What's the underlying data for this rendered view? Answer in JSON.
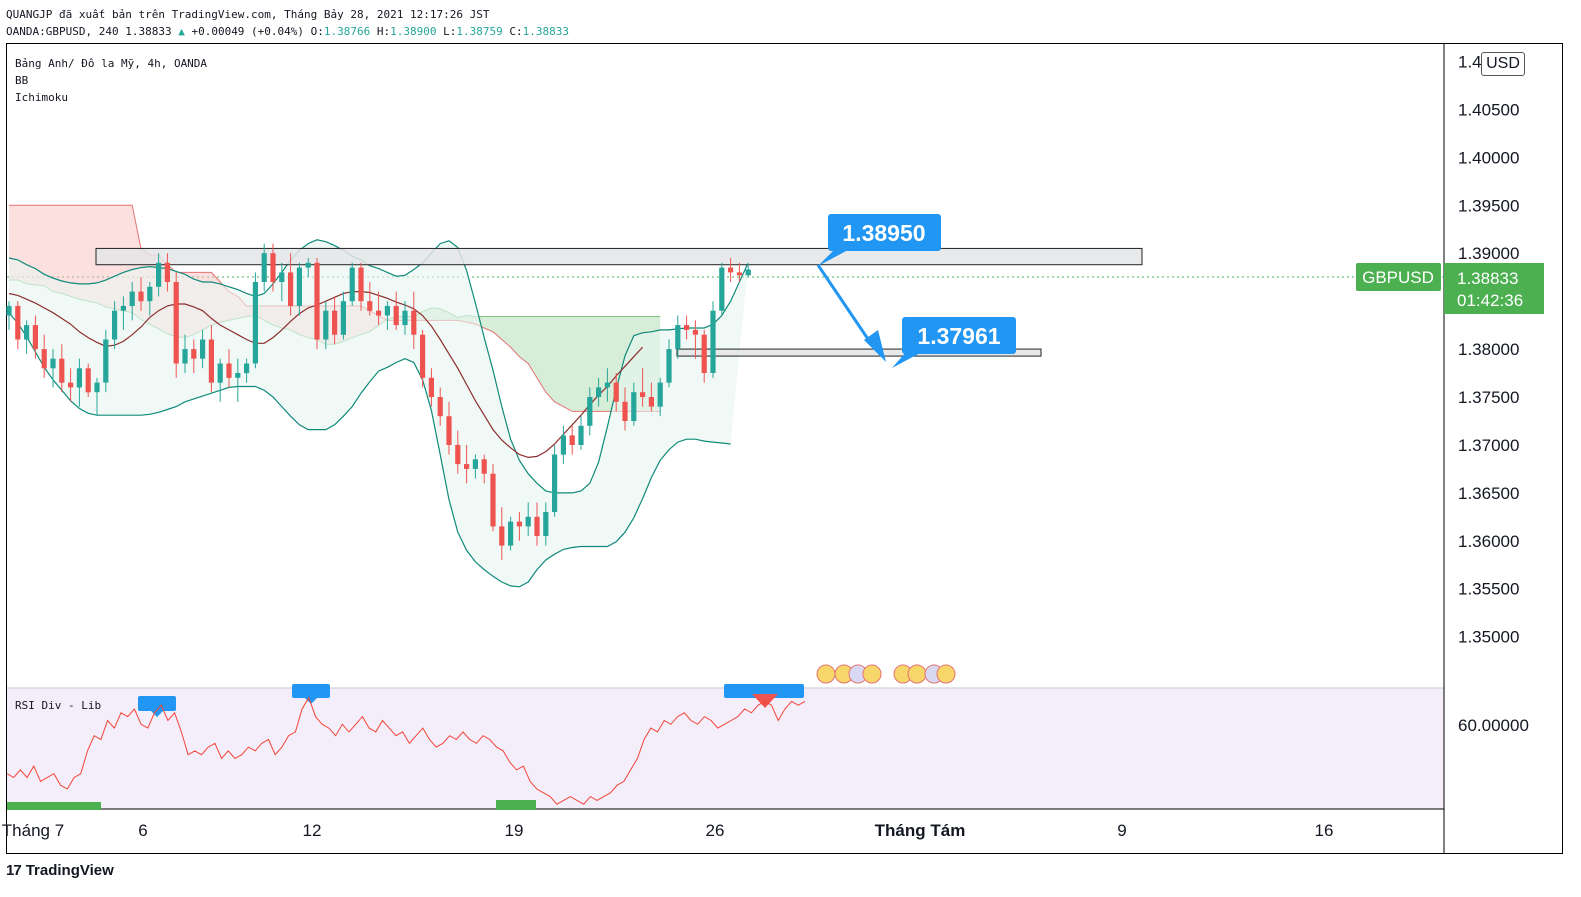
{
  "header": {
    "line1": "QUANGJP đã xuất bản trên TradingView.com, Tháng Bảy 28, 2021 12:17:26 JST",
    "symbol": "OANDA:GBPUSD, 240",
    "last": "1.38833",
    "change": "+0.00049 (+0.04%)",
    "o_label": "O:",
    "o": "1.38766",
    "h_label": "H:",
    "h": "1.38900",
    "l_label": "L:",
    "l": "1.38759",
    "c_label": "C:",
    "c": "1.38833"
  },
  "legend": {
    "title": "Bảng Anh/ Đô la Mỹ, 4h, OANDA",
    "indicator1": "BB",
    "indicator2": "Ichimoku"
  },
  "rsi_label": "RSI Div - Lib",
  "currency": "USD",
  "brand": "TradingView",
  "colors": {
    "up": "#26a69a",
    "down": "#ef5350",
    "bb_band": "#0f8a7a",
    "bb_basis": "#8b2e2e",
    "cloud_bull": "#a5d6a7",
    "cloud_bear": "#f8bbbb",
    "callout": "#2196f3",
    "price_tag": "#4caf50",
    "rsi_line": "#f44336",
    "rsi_bg": "#f3eef9"
  },
  "icons": {
    "callout_arrow": "arrow-down-right-icon",
    "event_flags": "flag-icon",
    "brand_logo": "tradingview-logo-icon"
  },
  "chart_data": [
    {
      "type": "candlestick",
      "title": "Bảng Anh/ Đô la Mỹ, 4h, OANDA",
      "symbol": "GBPUSD",
      "y_axis": {
        "ticks": [
          "1.41000",
          "1.40500",
          "1.40000",
          "1.39500",
          "1.39000",
          "1.38500",
          "1.38000",
          "1.37500",
          "1.37000",
          "1.36500",
          "1.36000",
          "1.35500",
          "1.35000"
        ],
        "range": [
          1.346,
          1.4112
        ]
      },
      "x_axis": {
        "ticks": [
          "Tháng 7",
          "6",
          "12",
          "19",
          "26",
          "Tháng Tám",
          "9",
          "16"
        ]
      },
      "last_price": {
        "label": "GBPUSD",
        "value": "1.38833",
        "countdown": "01:42:36"
      },
      "annotations": [
        {
          "label": "1.38950",
          "value": 1.3895
        },
        {
          "label": "1.37961",
          "value": 1.37961
        }
      ],
      "zones": [
        {
          "name": "resistance",
          "low": 1.3888,
          "high": 1.3905
        },
        {
          "name": "support",
          "low": 1.3793,
          "high": 1.38
        }
      ],
      "candles_ohlc": [
        [
          1.3835,
          1.385,
          1.382,
          1.3845
        ],
        [
          1.3845,
          1.385,
          1.38,
          1.381
        ],
        [
          1.381,
          1.383,
          1.3795,
          1.3825
        ],
        [
          1.3825,
          1.3835,
          1.379,
          1.38
        ],
        [
          1.38,
          1.3815,
          1.377,
          1.378
        ],
        [
          1.378,
          1.38,
          1.376,
          1.379
        ],
        [
          1.379,
          1.3805,
          1.3755,
          1.3765
        ],
        [
          1.3765,
          1.378,
          1.3745,
          1.376
        ],
        [
          1.376,
          1.379,
          1.374,
          1.378
        ],
        [
          1.378,
          1.3785,
          1.375,
          1.3755
        ],
        [
          1.3755,
          1.377,
          1.373,
          1.3765
        ],
        [
          1.3765,
          1.382,
          1.3755,
          1.381
        ],
        [
          1.381,
          1.385,
          1.38,
          1.384
        ],
        [
          1.384,
          1.3855,
          1.382,
          1.3845
        ],
        [
          1.3845,
          1.387,
          1.383,
          1.386
        ],
        [
          1.386,
          1.3875,
          1.384,
          1.385
        ],
        [
          1.385,
          1.387,
          1.3835,
          1.3865
        ],
        [
          1.3865,
          1.39,
          1.3855,
          1.389
        ],
        [
          1.389,
          1.39,
          1.386,
          1.387
        ],
        [
          1.387,
          1.388,
          1.377,
          1.3785
        ],
        [
          1.3785,
          1.3815,
          1.3775,
          1.38
        ],
        [
          1.38,
          1.381,
          1.3775,
          1.379
        ],
        [
          1.379,
          1.382,
          1.378,
          1.381
        ],
        [
          1.381,
          1.3825,
          1.3755,
          1.3765
        ],
        [
          1.3765,
          1.379,
          1.3745,
          1.3785
        ],
        [
          1.3785,
          1.38,
          1.376,
          1.377
        ],
        [
          1.377,
          1.379,
          1.3745,
          1.3775
        ],
        [
          1.3775,
          1.379,
          1.3765,
          1.3785
        ],
        [
          1.3785,
          1.388,
          1.378,
          1.387
        ],
        [
          1.387,
          1.391,
          1.386,
          1.39
        ],
        [
          1.39,
          1.391,
          1.386,
          1.387
        ],
        [
          1.387,
          1.389,
          1.385,
          1.388
        ],
        [
          1.388,
          1.39,
          1.3835,
          1.3845
        ],
        [
          1.3845,
          1.389,
          1.3835,
          1.3885
        ],
        [
          1.3885,
          1.3895,
          1.3875,
          1.389
        ],
        [
          1.389,
          1.3895,
          1.38,
          1.381
        ],
        [
          1.381,
          1.385,
          1.38,
          1.384
        ],
        [
          1.384,
          1.3855,
          1.3805,
          1.3815
        ],
        [
          1.3815,
          1.386,
          1.381,
          1.385
        ],
        [
          1.385,
          1.389,
          1.3845,
          1.3885
        ],
        [
          1.3885,
          1.389,
          1.384,
          1.385
        ],
        [
          1.385,
          1.387,
          1.3835,
          1.384
        ],
        [
          1.384,
          1.386,
          1.3825,
          1.3835
        ],
        [
          1.3835,
          1.385,
          1.382,
          1.3845
        ],
        [
          1.3845,
          1.386,
          1.382,
          1.3825
        ],
        [
          1.3825,
          1.385,
          1.3815,
          1.384
        ],
        [
          1.384,
          1.386,
          1.38,
          1.3815
        ],
        [
          1.3815,
          1.382,
          1.376,
          1.377
        ],
        [
          1.377,
          1.378,
          1.374,
          1.375
        ],
        [
          1.375,
          1.376,
          1.372,
          1.373
        ],
        [
          1.373,
          1.3745,
          1.369,
          1.37
        ],
        [
          1.37,
          1.3715,
          1.367,
          1.368
        ],
        [
          1.368,
          1.37,
          1.366,
          1.3675
        ],
        [
          1.3675,
          1.369,
          1.3665,
          1.3685
        ],
        [
          1.3685,
          1.369,
          1.366,
          1.367
        ],
        [
          1.367,
          1.368,
          1.361,
          1.3615
        ],
        [
          1.3615,
          1.3635,
          1.358,
          1.3595
        ],
        [
          1.3595,
          1.3625,
          1.359,
          1.362
        ],
        [
          1.362,
          1.363,
          1.36,
          1.3615
        ],
        [
          1.3615,
          1.364,
          1.3605,
          1.3625
        ],
        [
          1.3625,
          1.364,
          1.3595,
          1.3605
        ],
        [
          1.3605,
          1.364,
          1.3595,
          1.363
        ],
        [
          1.363,
          1.37,
          1.3625,
          1.369
        ],
        [
          1.369,
          1.372,
          1.368,
          1.371
        ],
        [
          1.371,
          1.372,
          1.369,
          1.37
        ],
        [
          1.37,
          1.373,
          1.3695,
          1.372
        ],
        [
          1.372,
          1.376,
          1.371,
          1.375
        ],
        [
          1.375,
          1.377,
          1.374,
          1.376
        ],
        [
          1.376,
          1.378,
          1.3745,
          1.3765
        ],
        [
          1.3765,
          1.3775,
          1.3735,
          1.3745
        ],
        [
          1.3745,
          1.376,
          1.3715,
          1.3725
        ],
        [
          1.3725,
          1.3765,
          1.372,
          1.3755
        ],
        [
          1.3755,
          1.378,
          1.374,
          1.375
        ],
        [
          1.375,
          1.3765,
          1.3735,
          1.374
        ],
        [
          1.374,
          1.377,
          1.373,
          1.3765
        ],
        [
          1.3765,
          1.381,
          1.376,
          1.38
        ],
        [
          1.38,
          1.3835,
          1.379,
          1.3825
        ],
        [
          1.3825,
          1.3835,
          1.381,
          1.382
        ],
        [
          1.382,
          1.383,
          1.379,
          1.3815
        ],
        [
          1.3815,
          1.382,
          1.3765,
          1.3775
        ],
        [
          1.3775,
          1.385,
          1.377,
          1.384
        ],
        [
          1.384,
          1.389,
          1.3835,
          1.3885
        ],
        [
          1.3885,
          1.3895,
          1.387,
          1.388
        ],
        [
          1.388,
          1.389,
          1.387,
          1.3877
        ],
        [
          1.3877,
          1.389,
          1.3876,
          1.3883
        ]
      ],
      "bollinger_upper": [
        1.3895,
        1.3893,
        1.3888,
        1.3884,
        1.3878,
        1.3874,
        1.3871,
        1.3869,
        1.3868,
        1.3868,
        1.3869,
        1.3872,
        1.3876,
        1.388,
        1.3883,
        1.3885,
        1.3886,
        1.3885,
        1.3884,
        1.3881,
        1.3878,
        1.3873,
        1.387,
        1.387,
        1.3868,
        1.3865,
        1.3862,
        1.3858,
        1.3855,
        1.3858,
        1.3868,
        1.388,
        1.3893,
        1.3903,
        1.391,
        1.3914,
        1.3912,
        1.3908,
        1.3903,
        1.3897,
        1.3893,
        1.3887,
        1.3884,
        1.388,
        1.3876,
        1.3877,
        1.3883,
        1.389,
        1.39,
        1.391,
        1.3913,
        1.3906,
        1.3882,
        1.3848,
        1.3812,
        1.3778,
        1.374,
        1.3706,
        1.3684,
        1.367,
        1.366,
        1.3652,
        1.365,
        1.365,
        1.365,
        1.3652,
        1.366,
        1.3682,
        1.3719,
        1.3758,
        1.3793,
        1.3814,
        1.3817,
        1.3818,
        1.382,
        1.382,
        1.3821,
        1.3822,
        1.3822,
        1.3822,
        1.3826,
        1.3835,
        1.385,
        1.387,
        1.389
      ],
      "bollinger_lower": [
        1.3838,
        1.3827,
        1.3813,
        1.3797,
        1.3781,
        1.3768,
        1.3757,
        1.3746,
        1.3738,
        1.3733,
        1.3731,
        1.3731,
        1.3731,
        1.3731,
        1.3731,
        1.3731,
        1.3732,
        1.3734,
        1.3737,
        1.374,
        1.3745,
        1.3748,
        1.3751,
        1.3754,
        1.3757,
        1.376,
        1.3761,
        1.3761,
        1.3761,
        1.3757,
        1.375,
        1.374,
        1.373,
        1.3721,
        1.3716,
        1.3716,
        1.3716,
        1.3721,
        1.373,
        1.374,
        1.3754,
        1.3766,
        1.3777,
        1.3781,
        1.3786,
        1.379,
        1.3786,
        1.3768,
        1.3736,
        1.369,
        1.3643,
        1.3609,
        1.359,
        1.3578,
        1.357,
        1.3563,
        1.3557,
        1.3553,
        1.3552,
        1.3557,
        1.357,
        1.358,
        1.3586,
        1.3591,
        1.3593,
        1.3594,
        1.3594,
        1.3594,
        1.3594,
        1.3599,
        1.3609,
        1.3624,
        1.3644,
        1.3666,
        1.3684,
        1.3695,
        1.3703,
        1.3706,
        1.3706,
        1.3704,
        1.3703,
        1.3702,
        1.3701
      ],
      "bollinger_basis": [
        1.3858,
        1.3856,
        1.3852,
        1.3848,
        1.3843,
        1.3838,
        1.3832,
        1.3826,
        1.3818,
        1.3812,
        1.3807,
        1.3803,
        1.3804,
        1.3808,
        1.3815,
        1.3823,
        1.3833,
        1.384,
        1.3845,
        1.3847,
        1.3847,
        1.3844,
        1.384,
        1.3832,
        1.3825,
        1.382,
        1.3815,
        1.381,
        1.3806,
        1.3806,
        1.3812,
        1.382,
        1.3829,
        1.3837,
        1.3843,
        1.3846,
        1.385,
        1.3854,
        1.3858,
        1.386,
        1.386,
        1.3859,
        1.3856,
        1.3853,
        1.3849,
        1.3846,
        1.3842,
        1.3835,
        1.3824,
        1.381,
        1.3795,
        1.378,
        1.3763,
        1.3746,
        1.3731,
        1.3716,
        1.3705,
        1.3697,
        1.369,
        1.3687,
        1.3688,
        1.3693,
        1.3701,
        1.3711,
        1.3721,
        1.3731,
        1.3742,
        1.3752,
        1.3761,
        1.3772,
        1.3782,
        1.3792,
        1.3802
      ],
      "ichimoku_span_a": [
        1.3872,
        1.3872,
        1.3868,
        1.3867,
        1.3866,
        1.386,
        1.3858,
        1.3855,
        1.3852,
        1.385,
        1.3848,
        1.3844,
        1.3842,
        1.384,
        1.3838,
        1.3831,
        1.3826,
        1.3821,
        1.3816,
        1.3813,
        1.3812,
        1.3815,
        1.382,
        1.3825,
        1.3828,
        1.383,
        1.3832,
        1.3834,
        1.3835,
        1.383,
        1.3825,
        1.3822,
        1.382,
        1.3815,
        1.3812,
        1.381,
        1.3805,
        1.3805,
        1.3808,
        1.3812,
        1.3815,
        1.3818,
        1.3825,
        1.3831,
        1.3834,
        1.3834,
        1.3834,
        1.3839,
        1.3843,
        1.3842,
        1.3838,
        1.3833,
        1.3835,
        1.3834,
        1.3834,
        1.3834,
        1.3834,
        1.3834,
        1.3834,
        1.3834,
        1.3834,
        1.3834,
        1.3834,
        1.3834,
        1.3834,
        1.3834,
        1.3834,
        1.3834,
        1.3834,
        1.3834,
        1.3834,
        1.3834,
        1.3834,
        1.3834,
        1.3834
      ],
      "ichimoku_span_b": [
        1.395,
        1.395,
        1.395,
        1.395,
        1.395,
        1.395,
        1.395,
        1.395,
        1.395,
        1.395,
        1.395,
        1.395,
        1.395,
        1.395,
        1.395,
        1.3905,
        1.3898,
        1.3898,
        1.3888,
        1.388,
        1.388,
        1.388,
        1.388,
        1.388,
        1.387,
        1.386,
        1.3855,
        1.3845,
        1.3845,
        1.3845,
        1.3845,
        1.3845,
        1.3845,
        1.3845,
        1.3845,
        1.3845,
        1.3845,
        1.3845,
        1.3845,
        1.3845,
        1.3845,
        1.384,
        1.3835,
        1.383,
        1.383,
        1.383,
        1.383,
        1.383,
        1.383,
        1.383,
        1.383,
        1.383,
        1.3828,
        1.3826,
        1.3822,
        1.3818,
        1.381,
        1.3802,
        1.3792,
        1.3785,
        1.377,
        1.3755,
        1.3745,
        1.374,
        1.3735,
        1.3735,
        1.3735,
        1.3735,
        1.3735,
        1.3735,
        1.3735,
        1.3735,
        1.3735,
        1.3735,
        1.3735
      ],
      "rsi_values": [
        44,
        43,
        45,
        43,
        46,
        42,
        43,
        44,
        41,
        40,
        43,
        44,
        50,
        54,
        53,
        58,
        56,
        60,
        59,
        61,
        57,
        56,
        60,
        62,
        58,
        60,
        55,
        49,
        50,
        49,
        51,
        52,
        48,
        50,
        48,
        49,
        51,
        50,
        52,
        53,
        49,
        51,
        54,
        55,
        61,
        64,
        59,
        57,
        56,
        54,
        57,
        55,
        57,
        59,
        56,
        55,
        58,
        56,
        54,
        55,
        52,
        54,
        56,
        53,
        51,
        52,
        54,
        53,
        55,
        53,
        52,
        54,
        53,
        51,
        50,
        47,
        45,
        46,
        42,
        40,
        39,
        38,
        36,
        37,
        38,
        37,
        36,
        38,
        37,
        38,
        39,
        41,
        42,
        45,
        48,
        53,
        56,
        55,
        58,
        57,
        59,
        60,
        58,
        57,
        59,
        58,
        56,
        57,
        58,
        59,
        61,
        60,
        62,
        63,
        62,
        58,
        61,
        63,
        62,
        63
      ]
    }
  ]
}
